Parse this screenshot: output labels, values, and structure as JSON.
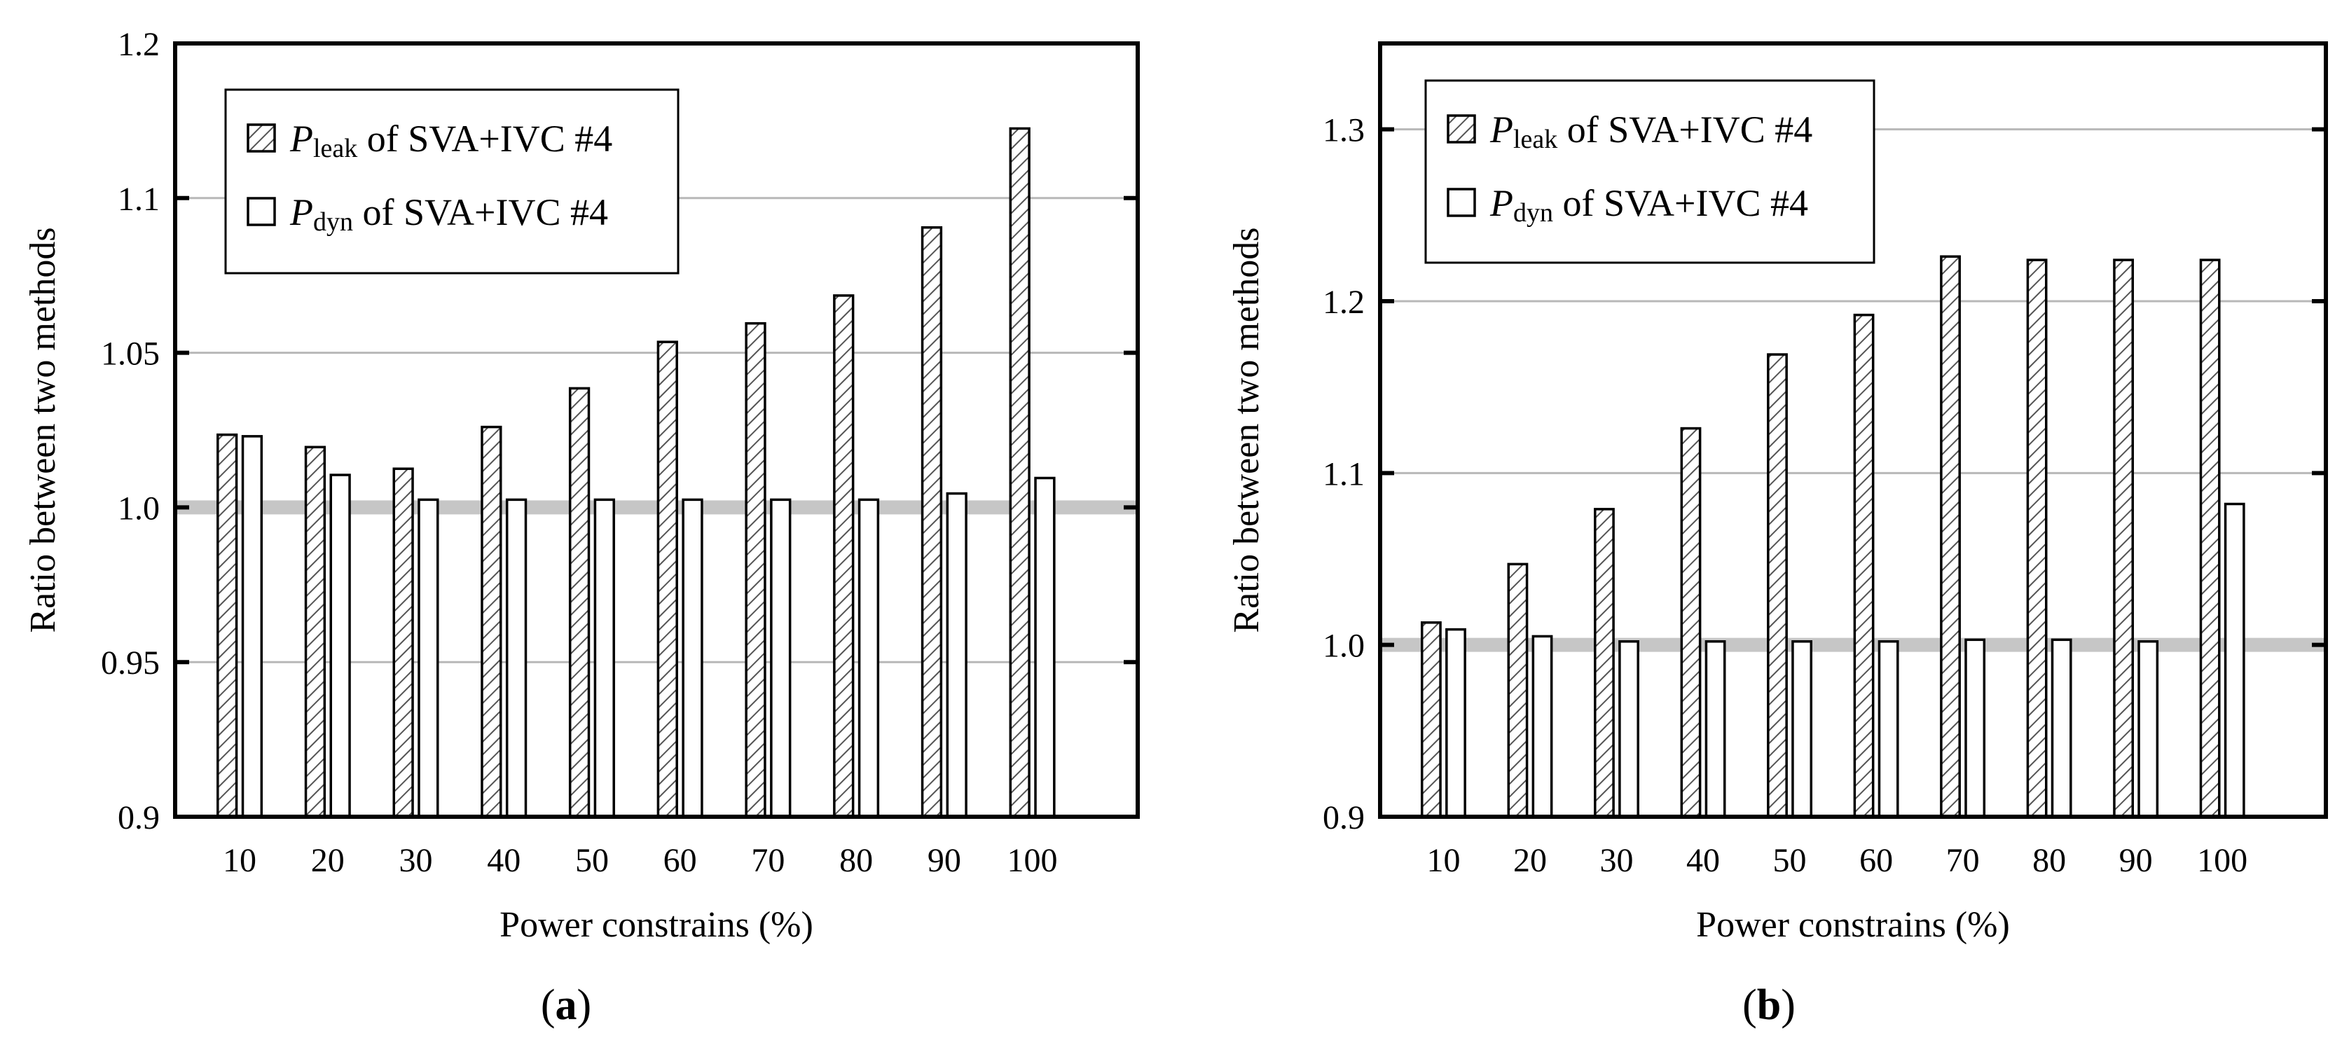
{
  "chart_data": [
    {
      "type": "bar",
      "panel_label": "(a)",
      "xlabel": "Power constrains (%)",
      "ylabel": "Ratio between two methods",
      "ylim": [
        0.9,
        1.15
      ],
      "yticks": [
        0.9,
        0.95,
        1.0,
        1.05,
        1.1
      ],
      "ytick_labels": [
        "0.9",
        "0.95",
        "1.0",
        "1.05",
        "1.1"
      ],
      "top_label": "1.2",
      "reference_line": 1.0,
      "grid": "horizontal",
      "legend_position": "top-left",
      "categories": [
        "10",
        "20",
        "30",
        "40",
        "50",
        "60",
        "70",
        "80",
        "90",
        "100"
      ],
      "series": [
        {
          "name": "Pleak of SVA+IVC #4",
          "legend_symbol": "P",
          "legend_subscript": "leak",
          "legend_rest": " of SVA+IVC #4",
          "pattern": "hatched",
          "values": [
            1.0235,
            1.0195,
            1.0125,
            1.026,
            1.0385,
            1.0535,
            1.0595,
            1.0685,
            1.0905,
            1.1225
          ]
        },
        {
          "name": "Pdyn of SVA+IVC #4",
          "legend_symbol": "P",
          "legend_subscript": "dyn",
          "legend_rest": " of SVA+IVC #4",
          "pattern": "open",
          "values": [
            1.023,
            1.0105,
            1.0025,
            1.0025,
            1.0025,
            1.0025,
            1.0025,
            1.0025,
            1.0045,
            1.0095
          ]
        }
      ]
    },
    {
      "type": "bar",
      "panel_label": "(b)",
      "xlabel": "Power constrains (%)",
      "ylabel": "Ratio between two methods",
      "ylim": [
        0.9,
        1.35
      ],
      "yticks": [
        0.9,
        1.0,
        1.1,
        1.2,
        1.3
      ],
      "ytick_labels": [
        "0.9",
        "1.0",
        "1.1",
        "1.2",
        "1.3"
      ],
      "reference_line": 1.0,
      "grid": "horizontal",
      "legend_position": "top-left",
      "categories": [
        "10",
        "20",
        "30",
        "40",
        "50",
        "60",
        "70",
        "80",
        "90",
        "100"
      ],
      "series": [
        {
          "name": "Pleak of SVA+IVC #4",
          "legend_symbol": "P",
          "legend_subscript": "leak",
          "legend_rest": " of SVA+IVC #4",
          "pattern": "hatched",
          "values": [
            1.013,
            1.047,
            1.079,
            1.126,
            1.169,
            1.192,
            1.226,
            1.224,
            1.224,
            1.224
          ]
        },
        {
          "name": "Pdyn of SVA+IVC #4",
          "legend_symbol": "P",
          "legend_subscript": "dyn",
          "legend_rest": " of SVA+IVC #4",
          "pattern": "open",
          "values": [
            1.009,
            1.005,
            1.002,
            1.002,
            1.002,
            1.002,
            1.003,
            1.003,
            1.002,
            1.082
          ]
        }
      ]
    }
  ]
}
